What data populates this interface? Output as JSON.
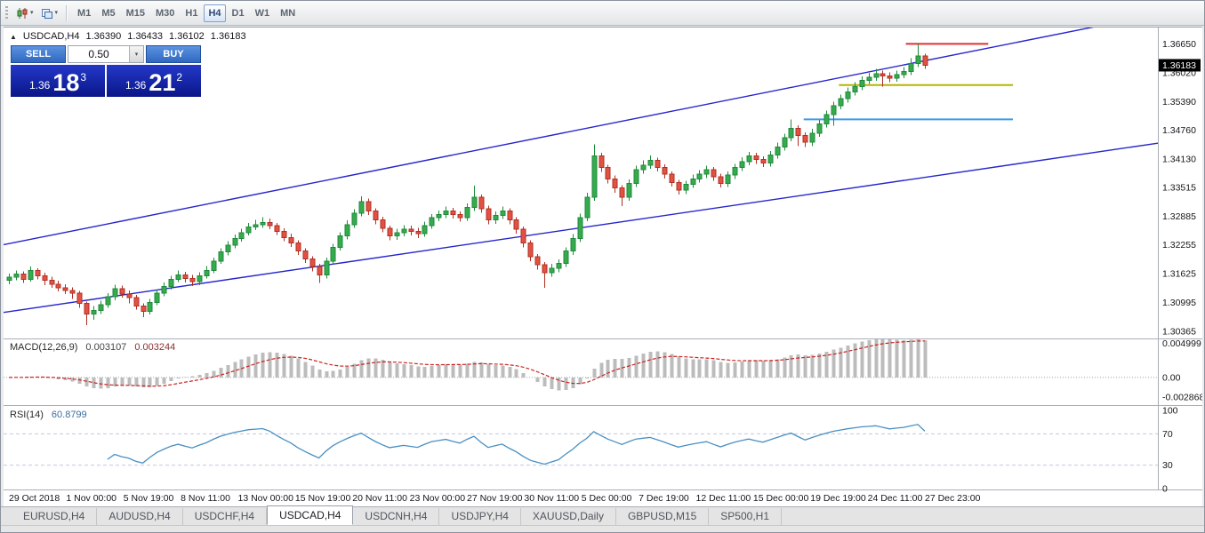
{
  "toolbar": {
    "timeframes": [
      "M1",
      "M5",
      "M15",
      "M30",
      "H1",
      "H4",
      "D1",
      "W1",
      "MN"
    ],
    "active_timeframe": "H4"
  },
  "quote_header": {
    "symbol": "USDCAD,H4",
    "open": "1.36390",
    "high": "1.36433",
    "low": "1.36102",
    "close": "1.36183"
  },
  "trade_panel": {
    "sell_label": "SELL",
    "buy_label": "BUY",
    "lot_size": "0.50",
    "bid_prefix": "1.36",
    "bid_big": "18",
    "bid_sup": "3",
    "ask_prefix": "1.36",
    "ask_big": "21",
    "ask_sup": "2"
  },
  "indicator_labels": {
    "macd_title": "MACD(12,26,9)",
    "macd_value_main": "0.003107",
    "macd_value_signal": "0.003244",
    "rsi_title": "RSI(14)",
    "rsi_value": "60.8799"
  },
  "tabs": {
    "items": [
      "EURUSD,H4",
      "AUDUSD,H4",
      "USDCHF,H4",
      "USDCAD,H4",
      "USDCNH,H4",
      "USDJPY,H4",
      "XAUUSD,Daily",
      "GBPUSD,M15",
      "SP500,H1"
    ],
    "active": "USDCAD,H4"
  },
  "colors": {
    "up_fill": "#36ab4e",
    "up_stroke": "#1f8a3a",
    "down_fill": "#e25242",
    "down_stroke": "#b03024",
    "channel": "#2626cc",
    "resistance_red": "#e03030",
    "support_yellow": "#b5b500",
    "support_blue": "#3d9ae8",
    "macd_hist": "#bcbcbc",
    "macd_signal": "#cc2222",
    "rsi_line": "#4a8fc2",
    "badge_bg": "#000000",
    "axis_text": "#15151a"
  },
  "chart_data": {
    "type": "candlestick",
    "symbol": "USDCAD",
    "timeframe": "H4",
    "ohlc_order": "open,high,low,close",
    "price_range": [
      1.3025,
      1.3693
    ],
    "price_ticks": [
      "1.36650",
      "1.36020",
      "1.35390",
      "1.34760",
      "1.34130",
      "1.33515",
      "1.32885",
      "1.32255",
      "1.31625",
      "1.30995",
      "1.30365"
    ],
    "current_price": "1.36183",
    "time_labels": [
      "29 Oct 2018",
      "1 Nov 00:00",
      "5 Nov 19:00",
      "8 Nov 11:00",
      "13 Nov 00:00",
      "15 Nov 19:00",
      "20 Nov 11:00",
      "23 Nov 00:00",
      "27 Nov 19:00",
      "30 Nov 11:00",
      "5 Dec 00:00",
      "7 Dec 19:00",
      "12 Dec 11:00",
      "15 Dec 00:00",
      "19 Dec 19:00",
      "24 Dec 11:00",
      "27 Dec 23:00"
    ],
    "candles": [
      [
        1.3148,
        1.3163,
        1.314,
        1.3155
      ],
      [
        1.3155,
        1.317,
        1.3148,
        1.3162
      ],
      [
        1.3162,
        1.3168,
        1.3142,
        1.315
      ],
      [
        1.315,
        1.3178,
        1.3145,
        1.317
      ],
      [
        1.317,
        1.3175,
        1.315,
        1.3158
      ],
      [
        1.3158,
        1.3165,
        1.3138,
        1.3148
      ],
      [
        1.3148,
        1.3156,
        1.3132,
        1.314
      ],
      [
        1.314,
        1.3147,
        1.3124,
        1.3132
      ],
      [
        1.3132,
        1.314,
        1.3118,
        1.3126
      ],
      [
        1.3126,
        1.3133,
        1.3108,
        1.312
      ],
      [
        1.312,
        1.3125,
        1.3088,
        1.3098
      ],
      [
        1.3098,
        1.3102,
        1.305,
        1.3075
      ],
      [
        1.3075,
        1.3092,
        1.3062,
        1.3082
      ],
      [
        1.3082,
        1.3104,
        1.3075,
        1.3095
      ],
      [
        1.3095,
        1.312,
        1.3088,
        1.3112
      ],
      [
        1.3112,
        1.3139,
        1.3105,
        1.313
      ],
      [
        1.313,
        1.3137,
        1.311,
        1.3118
      ],
      [
        1.3118,
        1.3126,
        1.3098,
        1.311
      ],
      [
        1.311,
        1.3116,
        1.3084,
        1.3092
      ],
      [
        1.3092,
        1.3098,
        1.3068,
        1.308
      ],
      [
        1.308,
        1.3108,
        1.3074,
        1.31
      ],
      [
        1.31,
        1.3128,
        1.3094,
        1.312
      ],
      [
        1.312,
        1.3143,
        1.3113,
        1.3135
      ],
      [
        1.3135,
        1.3158,
        1.3128,
        1.315
      ],
      [
        1.315,
        1.317,
        1.3144,
        1.316
      ],
      [
        1.316,
        1.3167,
        1.3143,
        1.3152
      ],
      [
        1.3152,
        1.316,
        1.3136,
        1.3145
      ],
      [
        1.3145,
        1.3166,
        1.3138,
        1.3158
      ],
      [
        1.3158,
        1.3179,
        1.3152,
        1.317
      ],
      [
        1.317,
        1.3198,
        1.3164,
        1.319
      ],
      [
        1.319,
        1.3218,
        1.3184,
        1.321
      ],
      [
        1.321,
        1.3234,
        1.3203,
        1.3225
      ],
      [
        1.3225,
        1.3248,
        1.3218,
        1.324
      ],
      [
        1.324,
        1.3261,
        1.3233,
        1.3252
      ],
      [
        1.3252,
        1.3274,
        1.3246,
        1.3265
      ],
      [
        1.3265,
        1.328,
        1.3258,
        1.327
      ],
      [
        1.327,
        1.3286,
        1.3263,
        1.3275
      ],
      [
        1.3275,
        1.3283,
        1.326,
        1.3268
      ],
      [
        1.3268,
        1.3274,
        1.3247,
        1.3255
      ],
      [
        1.3255,
        1.3262,
        1.3234,
        1.3242
      ],
      [
        1.3242,
        1.325,
        1.3221,
        1.323
      ],
      [
        1.323,
        1.3236,
        1.3204,
        1.3212
      ],
      [
        1.3212,
        1.3218,
        1.3186,
        1.3195
      ],
      [
        1.3195,
        1.3201,
        1.3168,
        1.3178
      ],
      [
        1.3178,
        1.3184,
        1.3142,
        1.316
      ],
      [
        1.316,
        1.3198,
        1.3152,
        1.319
      ],
      [
        1.319,
        1.3228,
        1.3183,
        1.322
      ],
      [
        1.322,
        1.3253,
        1.3213,
        1.3245
      ],
      [
        1.3245,
        1.3279,
        1.3238,
        1.327
      ],
      [
        1.327,
        1.3304,
        1.3263,
        1.3295
      ],
      [
        1.3295,
        1.3332,
        1.3288,
        1.332
      ],
      [
        1.332,
        1.3327,
        1.3291,
        1.33
      ],
      [
        1.33,
        1.3306,
        1.3271,
        1.328
      ],
      [
        1.328,
        1.3287,
        1.3253,
        1.3262
      ],
      [
        1.3262,
        1.3268,
        1.3236,
        1.3245
      ],
      [
        1.3245,
        1.3261,
        1.3237,
        1.3252
      ],
      [
        1.3252,
        1.3269,
        1.3244,
        1.326
      ],
      [
        1.326,
        1.3268,
        1.3246,
        1.3255
      ],
      [
        1.3255,
        1.3263,
        1.3241,
        1.325
      ],
      [
        1.325,
        1.3276,
        1.3243,
        1.3268
      ],
      [
        1.3268,
        1.3293,
        1.3261,
        1.3285
      ],
      [
        1.3285,
        1.3301,
        1.3277,
        1.3292
      ],
      [
        1.3292,
        1.3309,
        1.3284,
        1.33
      ],
      [
        1.33,
        1.3307,
        1.3283,
        1.3292
      ],
      [
        1.3292,
        1.3299,
        1.3276,
        1.3285
      ],
      [
        1.3285,
        1.3316,
        1.3278,
        1.3308
      ],
      [
        1.3308,
        1.3355,
        1.33,
        1.333
      ],
      [
        1.333,
        1.3336,
        1.3296,
        1.3305
      ],
      [
        1.3305,
        1.3311,
        1.3271,
        1.328
      ],
      [
        1.328,
        1.3299,
        1.3272,
        1.329
      ],
      [
        1.329,
        1.3309,
        1.3282,
        1.33
      ],
      [
        1.33,
        1.3306,
        1.3271,
        1.328
      ],
      [
        1.328,
        1.3286,
        1.325,
        1.326
      ],
      [
        1.326,
        1.3266,
        1.322,
        1.323
      ],
      [
        1.323,
        1.3236,
        1.319,
        1.32
      ],
      [
        1.32,
        1.3206,
        1.3172,
        1.3182
      ],
      [
        1.3182,
        1.3188,
        1.3132,
        1.3165
      ],
      [
        1.3165,
        1.3184,
        1.3156,
        1.3175
      ],
      [
        1.3175,
        1.3194,
        1.3166,
        1.3185
      ],
      [
        1.3185,
        1.322,
        1.3177,
        1.3212
      ],
      [
        1.3212,
        1.3249,
        1.3204,
        1.324
      ],
      [
        1.324,
        1.3294,
        1.3232,
        1.3285
      ],
      [
        1.3285,
        1.334,
        1.3277,
        1.333
      ],
      [
        1.333,
        1.3445,
        1.3322,
        1.342
      ],
      [
        1.342,
        1.3427,
        1.3385,
        1.3395
      ],
      [
        1.3395,
        1.3401,
        1.336,
        1.337
      ],
      [
        1.337,
        1.3377,
        1.334,
        1.335
      ],
      [
        1.335,
        1.3356,
        1.331,
        1.333
      ],
      [
        1.333,
        1.3369,
        1.3322,
        1.336
      ],
      [
        1.336,
        1.3399,
        1.3352,
        1.339
      ],
      [
        1.339,
        1.341,
        1.3381,
        1.34
      ],
      [
        1.34,
        1.3421,
        1.3392,
        1.341
      ],
      [
        1.341,
        1.3416,
        1.3386,
        1.3395
      ],
      [
        1.3395,
        1.3402,
        1.3371,
        1.338
      ],
      [
        1.338,
        1.3386,
        1.3353,
        1.3362
      ],
      [
        1.3362,
        1.3368,
        1.3336,
        1.3345
      ],
      [
        1.3345,
        1.3366,
        1.3337,
        1.3358
      ],
      [
        1.3358,
        1.3379,
        1.335,
        1.337
      ],
      [
        1.337,
        1.3389,
        1.3362,
        1.338
      ],
      [
        1.338,
        1.3399,
        1.3372,
        1.339
      ],
      [
        1.339,
        1.3396,
        1.3366,
        1.3375
      ],
      [
        1.3375,
        1.3381,
        1.3351,
        1.336
      ],
      [
        1.336,
        1.3386,
        1.3352,
        1.3378
      ],
      [
        1.3378,
        1.3403,
        1.337,
        1.3395
      ],
      [
        1.3395,
        1.3417,
        1.3387,
        1.3408
      ],
      [
        1.3408,
        1.3429,
        1.34,
        1.342
      ],
      [
        1.342,
        1.3427,
        1.3403,
        1.3412
      ],
      [
        1.3412,
        1.3419,
        1.3396,
        1.3405
      ],
      [
        1.3405,
        1.3431,
        1.3397,
        1.3422
      ],
      [
        1.3422,
        1.3449,
        1.3414,
        1.344
      ],
      [
        1.344,
        1.3469,
        1.3432,
        1.346
      ],
      [
        1.346,
        1.35,
        1.3452,
        1.348
      ],
      [
        1.348,
        1.3487,
        1.3442,
        1.3465
      ],
      [
        1.3465,
        1.3472,
        1.344,
        1.345
      ],
      [
        1.345,
        1.3479,
        1.3442,
        1.347
      ],
      [
        1.347,
        1.3499,
        1.3462,
        1.349
      ],
      [
        1.349,
        1.3519,
        1.3482,
        1.351
      ],
      [
        1.351,
        1.3539,
        1.3486,
        1.353
      ],
      [
        1.353,
        1.3554,
        1.3522,
        1.3545
      ],
      [
        1.3545,
        1.357,
        1.3537,
        1.356
      ],
      [
        1.356,
        1.3581,
        1.3552,
        1.3572
      ],
      [
        1.3572,
        1.3594,
        1.3564,
        1.3585
      ],
      [
        1.3585,
        1.3602,
        1.3577,
        1.3592
      ],
      [
        1.3592,
        1.361,
        1.3584,
        1.36
      ],
      [
        1.36,
        1.3607,
        1.3572,
        1.3595
      ],
      [
        1.3595,
        1.3603,
        1.3581,
        1.359
      ],
      [
        1.359,
        1.3607,
        1.3582,
        1.3598
      ],
      [
        1.3598,
        1.3614,
        1.359,
        1.3605
      ],
      [
        1.3605,
        1.3634,
        1.3597,
        1.3622
      ],
      [
        1.3622,
        1.3665,
        1.3614,
        1.3639
      ],
      [
        1.3639,
        1.36433,
        1.36102,
        1.36183
      ]
    ],
    "overlays": {
      "channel_lower": {
        "price_start": 1.3078,
        "price_end": 1.3448
      },
      "channel_upper": {
        "price_start": 1.3226,
        "price_end": 1.373
      },
      "hlines": [
        {
          "name": "resistance-red-line",
          "price": 1.3665,
          "i1": 127.3,
          "i2": 139.0,
          "color_key": "resistance_red"
        },
        {
          "name": "support-yellow-line",
          "price": 1.3575,
          "i1": 117.8,
          "i2": 142.5,
          "color_key": "support_yellow"
        },
        {
          "name": "support-blue-line",
          "price": 1.35,
          "i1": 112.8,
          "i2": 142.5,
          "color_key": "support_blue"
        }
      ]
    },
    "macd": {
      "fast": 12,
      "slow": 26,
      "signal": 9,
      "range": [
        -0.0038,
        0.0056
      ],
      "ticks": [
        {
          "v": 0.004999,
          "label": "0.004999"
        },
        {
          "v": 0,
          "label": "0.00"
        },
        {
          "v": -0.002868,
          "label": "-0.002868"
        }
      ]
    },
    "rsi": {
      "period": 14,
      "range": [
        0,
        100
      ],
      "levels": [
        70,
        30
      ],
      "ticks": [
        {
          "v": 100,
          "label": "100"
        },
        {
          "v": 70,
          "label": "70"
        },
        {
          "v": 30,
          "label": "30"
        },
        {
          "v": 0,
          "label": "0"
        }
      ]
    }
  }
}
